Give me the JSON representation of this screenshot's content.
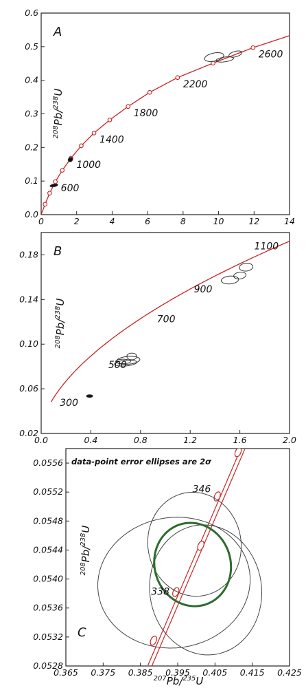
{
  "chart_data": [
    {
      "panel": "A",
      "type": "line",
      "title": "",
      "ylabel": {
        "sup1": "208",
        "el1": "Pb/",
        "sup2": "238",
        "el2": "U"
      },
      "xlim": [
        0,
        14
      ],
      "ylim": [
        0,
        0.6
      ],
      "xticks": [
        0,
        2,
        4,
        6,
        8,
        10,
        12,
        14
      ],
      "xtick_labels": [
        "0",
        "2",
        "4",
        "6",
        "8",
        "10",
        "12",
        "14"
      ],
      "yticks": [
        0,
        0.1,
        0.2,
        0.3,
        0.4,
        0.5,
        0.6
      ],
      "ytick_labels": [
        "0.0",
        "0.1",
        "0.2",
        "0.3",
        "0.4",
        "0.5",
        "0.6"
      ],
      "curve_color": "#cc2222",
      "curve_markers": [
        {
          "age": 200,
          "x": 0.22,
          "y": 0.031
        },
        {
          "age": 400,
          "x": 0.48,
          "y": 0.064
        },
        {
          "age": 600,
          "x": 0.8,
          "y": 0.098
        },
        {
          "age": 800,
          "x": 1.19,
          "y": 0.132
        },
        {
          "age": 1000,
          "x": 1.68,
          "y": 0.168
        },
        {
          "age": 1200,
          "x": 2.26,
          "y": 0.205
        },
        {
          "age": 1400,
          "x": 2.98,
          "y": 0.243
        },
        {
          "age": 1600,
          "x": 3.87,
          "y": 0.282
        },
        {
          "age": 1800,
          "x": 4.9,
          "y": 0.322
        },
        {
          "age": 2000,
          "x": 6.12,
          "y": 0.364
        },
        {
          "age": 2200,
          "x": 7.69,
          "y": 0.408
        },
        {
          "age": 2400,
          "x": 9.69,
          "y": 0.451
        },
        {
          "age": 2600,
          "x": 11.94,
          "y": 0.497
        }
      ],
      "age_labels": [
        {
          "text": "600",
          "x": 0.8,
          "y": 0.098
        },
        {
          "text": "1000",
          "x": 1.68,
          "y": 0.168
        },
        {
          "text": "1400",
          "x": 2.98,
          "y": 0.243
        },
        {
          "text": "1800",
          "x": 4.9,
          "y": 0.322
        },
        {
          "text": "2200",
          "x": 7.69,
          "y": 0.408
        },
        {
          "text": "2600",
          "x": 11.94,
          "y": 0.497
        }
      ],
      "ellipses": [
        {
          "cx": 0.72,
          "cy": 0.087,
          "rx": 0.22,
          "ry": 0.004,
          "rot": -10,
          "fill": true
        },
        {
          "cx": 1.65,
          "cy": 0.164,
          "rx": 0.14,
          "ry": 0.006,
          "rot": -40,
          "fill": true
        },
        {
          "cx": 9.75,
          "cy": 0.469,
          "rx": 0.55,
          "ry": 0.012,
          "rot": -12,
          "fill": false
        },
        {
          "cx": 10.35,
          "cy": 0.462,
          "rx": 0.5,
          "ry": 0.007,
          "rot": -8,
          "fill": false
        },
        {
          "cx": 10.95,
          "cy": 0.478,
          "rx": 0.38,
          "ry": 0.008,
          "rot": -15,
          "fill": false
        }
      ]
    },
    {
      "panel": "B",
      "type": "line",
      "title": "",
      "ylabel": {
        "sup1": "208",
        "el1": "Pb/",
        "sup2": "238",
        "el2": "U"
      },
      "xlim": [
        0,
        2.0
      ],
      "ylim": [
        0.02,
        0.2
      ],
      "xticks": [
        0,
        0.4,
        0.8,
        1.2,
        1.6,
        2.0
      ],
      "xtick_labels": [
        "0.0",
        "0.4",
        "0.8",
        "1.2",
        "1.6",
        "2.0"
      ],
      "yticks": [
        0.02,
        0.06,
        0.1,
        0.14,
        0.18
      ],
      "ytick_labels": [
        "0.02",
        "0.06",
        "0.10",
        "0.14",
        "0.18"
      ],
      "curve_color": "#cc2222",
      "age_labels": [
        {
          "text": "300",
          "x": 0.36,
          "y": 0.047,
          "dx": -38,
          "dy": 4
        },
        {
          "text": "500",
          "x": 0.64,
          "y": 0.081,
          "dx": -18,
          "dy": 4
        },
        {
          "text": "700",
          "x": 0.96,
          "y": 0.116,
          "dx": -5,
          "dy": -6
        },
        {
          "text": "900",
          "x": 1.44,
          "y": 0.15,
          "dx": -38,
          "dy": 6
        },
        {
          "text": "1100",
          "x": 1.76,
          "y": 0.186,
          "dx": -8,
          "dy": 2
        }
      ],
      "ellipses": [
        {
          "cx": 0.39,
          "cy": 0.0535,
          "rx": 0.025,
          "ry": 0.0012,
          "rot": 0,
          "fill": true
        },
        {
          "cx": 0.7,
          "cy": 0.0855,
          "rx": 0.095,
          "ry": 0.0035,
          "rot": -5,
          "fill": false
        },
        {
          "cx": 0.68,
          "cy": 0.083,
          "rx": 0.09,
          "ry": 0.0025,
          "rot": -5,
          "fill": false
        },
        {
          "cx": 0.73,
          "cy": 0.089,
          "rx": 0.04,
          "ry": 0.003,
          "rot": 0,
          "fill": false
        },
        {
          "cx": 0.66,
          "cy": 0.0845,
          "rx": 0.06,
          "ry": 0.002,
          "rot": 0,
          "fill": false
        },
        {
          "cx": 1.52,
          "cy": 0.1575,
          "rx": 0.07,
          "ry": 0.0035,
          "rot": -5,
          "fill": false
        },
        {
          "cx": 1.6,
          "cy": 0.1615,
          "rx": 0.05,
          "ry": 0.003,
          "rot": -8,
          "fill": false
        },
        {
          "cx": 1.65,
          "cy": 0.169,
          "rx": 0.055,
          "ry": 0.0035,
          "rot": -5,
          "fill": false
        }
      ]
    },
    {
      "panel": "C",
      "type": "scatter",
      "title": "",
      "note": "data-point error ellipses are 2σ",
      "xlabel": {
        "sup1": "207",
        "el1": "Pb/",
        "sup2": "235",
        "el2": "U"
      },
      "ylabel": {
        "sup1": "208",
        "el1": "Pb/",
        "sup2": "238",
        "el2": "U"
      },
      "xlim": [
        0.365,
        0.425
      ],
      "ylim": [
        0.0528,
        0.0558
      ],
      "xticks": [
        0.365,
        0.375,
        0.385,
        0.395,
        0.405,
        0.415,
        0.425
      ],
      "xtick_labels": [
        "0.365",
        "0.375",
        "0.385",
        "0.395",
        "0.405",
        "0.415",
        "0.425"
      ],
      "yticks": [
        0.0528,
        0.0532,
        0.0536,
        0.054,
        0.0544,
        0.0548,
        0.0552,
        0.0556
      ],
      "ytick_labels": [
        "0.0528",
        "0.0532",
        "0.0536",
        "0.0540",
        "0.0544",
        "0.0548",
        "0.0552",
        "0.0556"
      ],
      "band_color": "#cc2222",
      "band_points": [
        {
          "x": 0.3875,
          "y": 0.0528
        },
        {
          "x": 0.4125,
          "y": 0.0558
        }
      ],
      "band_markers": [
        {
          "x": 0.3885,
          "y": 0.05315,
          "age": 334
        },
        {
          "x": 0.3945,
          "y": 0.05382,
          "age": 338
        },
        {
          "x": 0.4012,
          "y": 0.05446,
          "age": 342
        },
        {
          "x": 0.4056,
          "y": 0.05514,
          "age": 346
        },
        {
          "x": 0.4112,
          "y": 0.05575,
          "age": 350
        }
      ],
      "age_labels": [
        {
          "text": "338",
          "x": 0.3945,
          "y": 0.05382,
          "dx": -36,
          "dy": 4
        },
        {
          "text": "346",
          "x": 0.4056,
          "y": 0.05514,
          "dx": -36,
          "dy": -6
        }
      ],
      "ellipses": [
        {
          "cx": 0.3995,
          "cy": 0.05448,
          "rx": 0.0125,
          "ry": 0.00072,
          "rot": -10,
          "color": "#444444",
          "width": 1
        },
        {
          "cx": 0.394,
          "cy": 0.05395,
          "rx": 0.0205,
          "ry": 0.0009,
          "rot": -8,
          "color": "#444444",
          "width": 1
        },
        {
          "cx": 0.4025,
          "cy": 0.05385,
          "rx": 0.015,
          "ry": 0.0009,
          "rot": -8,
          "color": "#444444",
          "width": 1
        },
        {
          "cx": 0.399,
          "cy": 0.0542,
          "rx": 0.0102,
          "ry": 0.00058,
          "rot": -18,
          "color": "#2d6b2d",
          "width": 3
        }
      ]
    }
  ]
}
